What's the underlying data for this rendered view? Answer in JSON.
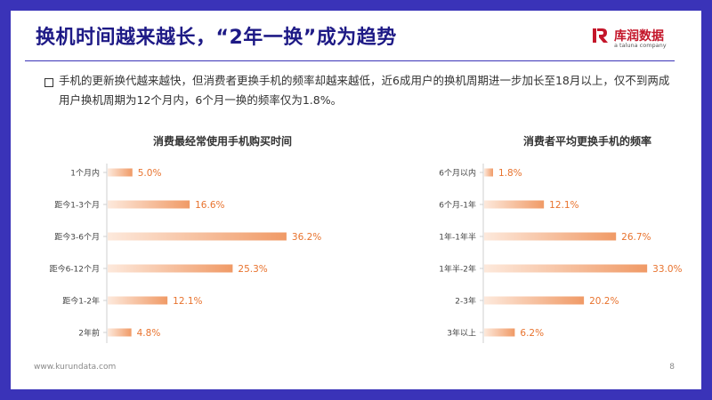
{
  "header": {
    "title": "换机时间越来越长，“2年一换”成为趋势",
    "logo_cn": "库润数据",
    "logo_en": "a taluna company"
  },
  "intro": {
    "text": "手机的更新换代越来越快，但消费者更换手机的频率却越来越低，近6成用户的换机周期进一步加长至18月以上，仅不到两成用户换机周期为12个月内，6个月一换的频率仅为1.8%。"
  },
  "footer": {
    "url": "www.kurundata.com",
    "page": "8"
  },
  "colors": {
    "bar_start": "#fde9dc",
    "bar_end": "#f09a66",
    "value_label": "#e8732e",
    "title": "#1e1a86",
    "frame": "#3a33b8"
  },
  "chart_data": [
    {
      "type": "bar",
      "orientation": "horizontal",
      "title": "消费最经常使用手机购买时间",
      "categories": [
        "1个月内",
        "距今1-3个月",
        "距今3-6个月",
        "距今6-12个月",
        "距今1-2年",
        "2年前"
      ],
      "values": [
        5.0,
        16.6,
        36.2,
        25.3,
        12.1,
        4.8
      ],
      "value_labels": [
        "5.0%",
        "16.6%",
        "36.2%",
        "25.3%",
        "12.1%",
        "4.8%"
      ],
      "unit": "%",
      "xlim": [
        0,
        40
      ],
      "grid": false
    },
    {
      "type": "bar",
      "orientation": "horizontal",
      "title": "消费者平均更换手机的频率",
      "categories": [
        "6个月以内",
        "6个月-1年",
        "1年-1年半",
        "1年半-2年",
        "2-3年",
        "3年以上"
      ],
      "values": [
        1.8,
        12.1,
        26.7,
        33.0,
        20.2,
        6.2
      ],
      "value_labels": [
        "1.8%",
        "12.1%",
        "26.7%",
        "33.0%",
        "20.2%",
        "6.2%"
      ],
      "unit": "%",
      "xlim": [
        0,
        40
      ],
      "grid": false
    }
  ]
}
